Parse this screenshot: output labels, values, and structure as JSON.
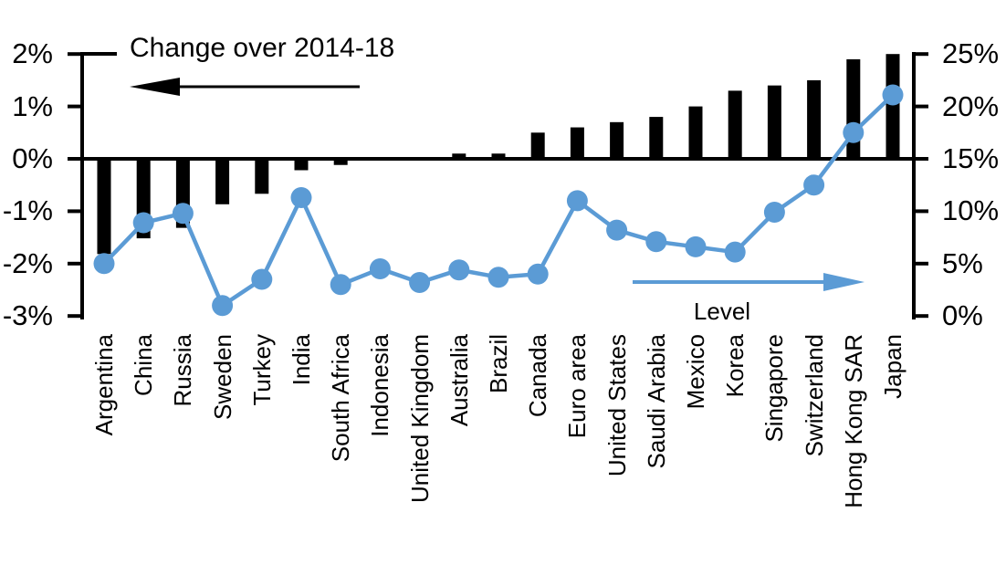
{
  "title": "Change over 2014-18",
  "level_label": "Level",
  "colors": {
    "bar": "#000000",
    "line": "#5B9BD5",
    "axis": "#000000",
    "background": "#ffffff"
  },
  "left_axis": {
    "labels": [
      "2%",
      "1%",
      "0%",
      "-1%",
      "-2%",
      "-3%"
    ],
    "values": [
      2,
      1,
      0,
      -1,
      -2,
      -3
    ]
  },
  "right_axis": {
    "labels": [
      "25%",
      "20%",
      "15%",
      "10%",
      "5%",
      "0%"
    ],
    "values": [
      25,
      20,
      15,
      10,
      5,
      0
    ]
  },
  "chart_data": {
    "type": "bar+line",
    "categories": [
      "Argentina",
      "China",
      "Russia",
      "Sweden",
      "Turkey",
      "India",
      "South Africa",
      "Indonesia",
      "United Kingdom",
      "Australia",
      "Brazil",
      "Canada",
      "Euro area",
      "United States",
      "Saudi Arabia",
      "Mexico",
      "Korea",
      "Singapore",
      "Switzerland",
      "Hong Kong SAR",
      "Japan"
    ],
    "series": [
      {
        "name": "Change over 2014-18",
        "type": "bar",
        "axis": "left",
        "color": "#000000",
        "values": [
          -1.8,
          -1.5,
          -1.3,
          -0.85,
          -0.65,
          -0.2,
          -0.1,
          0,
          0,
          0.1,
          0.1,
          0.5,
          0.6,
          0.7,
          0.8,
          1.0,
          1.3,
          1.4,
          1.5,
          1.9,
          2.0
        ]
      },
      {
        "name": "Level",
        "type": "line",
        "axis": "right",
        "color": "#5B9BD5",
        "values": [
          5.0,
          8.9,
          9.8,
          1.0,
          3.5,
          11.3,
          3.0,
          4.5,
          3.2,
          4.4,
          3.7,
          4.0,
          11.0,
          8.2,
          7.1,
          6.6,
          6.1,
          9.9,
          12.5,
          17.5,
          21.1
        ]
      }
    ],
    "left_ylim": [
      -3,
      2
    ],
    "right_ylim": [
      0,
      25
    ],
    "grid": false,
    "legend": "in-plot arrow annotations pointing toward each series' axis"
  }
}
